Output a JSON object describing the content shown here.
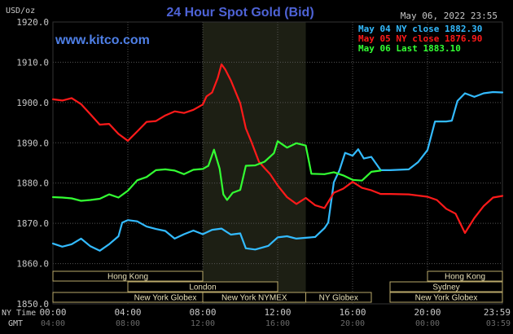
{
  "header": {
    "title": "24 Hour Spot Gold (Bid)",
    "date": "May 06, 2022 23:55",
    "brand": "www.kitco.com",
    "unit_label": "USD/oz"
  },
  "colors": {
    "background": "#000000",
    "title": "#4e63d6",
    "brand": "#4e7fe6",
    "axis_text": "#c8c8c8",
    "gridline": "#555555",
    "shade": "#1d1f14",
    "market_box_border": "#b9a86a",
    "market_box_text": "#e8e0b8",
    "series_may04": "#33bbff",
    "series_may05": "#ff1a1a",
    "series_may06": "#33ff33"
  },
  "markets": [
    {
      "name": "Hong Kong",
      "start": 0.0,
      "end": 8.0,
      "row": 0
    },
    {
      "name": "London",
      "start": 4.0,
      "end": 12.0,
      "row": 1
    },
    {
      "name": "New York Globex",
      "start": 0.0,
      "end": 12.0,
      "row": 2
    },
    {
      "name": "New York NYMEX",
      "start": 8.0,
      "end": 13.5,
      "row": 2
    },
    {
      "name": "NY Globex",
      "start": 13.5,
      "end": 17.0,
      "row": 2
    },
    {
      "name": "Hong Kong",
      "start": 20.0,
      "end": 24.0,
      "row": 0
    },
    {
      "name": "Sydney",
      "start": 18.0,
      "end": 24.0,
      "row": 1
    },
    {
      "name": "New York Globex",
      "start": 18.0,
      "end": 24.0,
      "row": 2
    }
  ],
  "shaded_region": {
    "start_hour": 8.0,
    "end_hour": 13.5
  },
  "footer": {
    "ny_time_label": "NY Time",
    "gmt_label": "GMT",
    "ny_ticks": [
      "00:00",
      "04:00",
      "08:00",
      "12:00",
      "16:00",
      "20:00",
      "23:59"
    ],
    "gmt_ticks": [
      "04:00",
      "08:00",
      "12:00",
      "16:00",
      "20:00",
      "00:00",
      "03:59"
    ]
  },
  "chart_data": {
    "type": "line",
    "title": "24 Hour Spot Gold (Bid)",
    "ylabel": "USD/oz",
    "xlabel": "NY Time",
    "ylim": [
      1850,
      1920
    ],
    "xlim_hours": [
      0,
      24
    ],
    "y_ticks": [
      "1920.0",
      "1910.0",
      "1900.0",
      "1890.0",
      "1880.0",
      "1870.0",
      "1860.0",
      "1850.0"
    ],
    "grid": true,
    "legend_position": "top-right",
    "series": [
      {
        "name": "May 04 NY close 1882.30",
        "color": "#33bbff",
        "points": [
          [
            0,
            1865
          ],
          [
            0.5,
            1864.2
          ],
          [
            1,
            1864.8
          ],
          [
            1.5,
            1866.2
          ],
          [
            2,
            1864.3
          ],
          [
            2.5,
            1863.2
          ],
          [
            3,
            1864.8
          ],
          [
            3.5,
            1866.8
          ],
          [
            3.7,
            1870.2
          ],
          [
            4,
            1870.8
          ],
          [
            4.5,
            1870.5
          ],
          [
            5,
            1869.2
          ],
          [
            5.5,
            1868.6
          ],
          [
            6,
            1868.1
          ],
          [
            6.5,
            1866.2
          ],
          [
            7,
            1867.3
          ],
          [
            7.5,
            1868.2
          ],
          [
            8,
            1867.3
          ],
          [
            8.5,
            1868.4
          ],
          [
            9,
            1868.7
          ],
          [
            9.5,
            1867.2
          ],
          [
            10,
            1867.5
          ],
          [
            10.3,
            1863.8
          ],
          [
            10.8,
            1863.5
          ],
          [
            11.5,
            1864.4
          ],
          [
            12,
            1866.5
          ],
          [
            12.5,
            1866.8
          ],
          [
            13,
            1866.2
          ],
          [
            13.5,
            1866.4
          ],
          [
            14,
            1866.6
          ],
          [
            14.5,
            1868.8
          ],
          [
            14.7,
            1870.2
          ],
          [
            15,
            1880.2
          ],
          [
            15.3,
            1883.2
          ],
          [
            15.6,
            1887.5
          ],
          [
            16,
            1886.8
          ],
          [
            16.3,
            1888.4
          ],
          [
            16.6,
            1886.1
          ],
          [
            17,
            1886.5
          ],
          [
            17.5,
            1883.2
          ],
          [
            18,
            1883.2
          ],
          [
            19,
            1883.4
          ],
          [
            19.5,
            1885.2
          ],
          [
            20,
            1888.2
          ],
          [
            20.4,
            1895.3
          ],
          [
            21,
            1895.3
          ],
          [
            21.3,
            1895.5
          ],
          [
            21.6,
            1900.4
          ],
          [
            22,
            1902.3
          ],
          [
            22.5,
            1901.4
          ],
          [
            23,
            1902.3
          ],
          [
            23.5,
            1902.6
          ],
          [
            24,
            1902.5
          ]
        ]
      },
      {
        "name": "May 05 NY close 1876.90",
        "color": "#ff1a1a",
        "points": [
          [
            0,
            1900.8
          ],
          [
            0.5,
            1900.5
          ],
          [
            1,
            1901.1
          ],
          [
            1.5,
            1899.6
          ],
          [
            2,
            1897.1
          ],
          [
            2.5,
            1894.5
          ],
          [
            3,
            1894.7
          ],
          [
            3.5,
            1892.2
          ],
          [
            4,
            1890.5
          ],
          [
            4.5,
            1892.8
          ],
          [
            5,
            1895.2
          ],
          [
            5.5,
            1895.4
          ],
          [
            6,
            1896.8
          ],
          [
            6.5,
            1897.8
          ],
          [
            7,
            1897.4
          ],
          [
            7.5,
            1898.2
          ],
          [
            8,
            1899.5
          ],
          [
            8.2,
            1901.5
          ],
          [
            8.5,
            1902.5
          ],
          [
            8.8,
            1906.1
          ],
          [
            9,
            1909.5
          ],
          [
            9.2,
            1908.2
          ],
          [
            9.5,
            1905.5
          ],
          [
            10,
            1899.8
          ],
          [
            10.3,
            1893.6
          ],
          [
            10.6,
            1890.2
          ],
          [
            11,
            1885.3
          ],
          [
            11.3,
            1883.7
          ],
          [
            11.6,
            1882.2
          ],
          [
            12,
            1879.4
          ],
          [
            12.5,
            1876.5
          ],
          [
            13,
            1874.8
          ],
          [
            13.5,
            1876.3
          ],
          [
            14,
            1874.5
          ],
          [
            14.5,
            1873.8
          ],
          [
            15,
            1877.6
          ],
          [
            15.5,
            1878.6
          ],
          [
            16,
            1880.3
          ],
          [
            16.5,
            1878.8
          ],
          [
            17,
            1878.2
          ],
          [
            17.5,
            1877.3
          ],
          [
            18,
            1877.3
          ],
          [
            19,
            1877.2
          ],
          [
            20,
            1876.6
          ],
          [
            20.5,
            1875.8
          ],
          [
            21,
            1873.6
          ],
          [
            21.5,
            1872.4
          ],
          [
            22,
            1867.6
          ],
          [
            22.5,
            1871.3
          ],
          [
            23,
            1874.3
          ],
          [
            23.5,
            1876.4
          ],
          [
            24,
            1876.8
          ]
        ]
      },
      {
        "name": "May 06 Last 1883.10",
        "color": "#33ff33",
        "points": [
          [
            0,
            1876.5
          ],
          [
            0.5,
            1876.4
          ],
          [
            1,
            1876.2
          ],
          [
            1.5,
            1875.6
          ],
          [
            2,
            1875.8
          ],
          [
            2.5,
            1876.1
          ],
          [
            3,
            1877.2
          ],
          [
            3.5,
            1876.4
          ],
          [
            4,
            1878.1
          ],
          [
            4.5,
            1880.7
          ],
          [
            5,
            1881.5
          ],
          [
            5.5,
            1883.2
          ],
          [
            6,
            1883.4
          ],
          [
            6.5,
            1883.1
          ],
          [
            7,
            1882.2
          ],
          [
            7.5,
            1883.3
          ],
          [
            8,
            1883.5
          ],
          [
            8.3,
            1884.3
          ],
          [
            8.6,
            1888.3
          ],
          [
            8.9,
            1883.6
          ],
          [
            9.1,
            1877.2
          ],
          [
            9.3,
            1875.8
          ],
          [
            9.6,
            1877.6
          ],
          [
            10,
            1878.3
          ],
          [
            10.3,
            1884.3
          ],
          [
            10.8,
            1884.4
          ],
          [
            11.3,
            1885.3
          ],
          [
            11.8,
            1887.4
          ],
          [
            12,
            1890.4
          ],
          [
            12.5,
            1888.8
          ],
          [
            13,
            1889.9
          ],
          [
            13.5,
            1889.3
          ],
          [
            13.8,
            1882.3
          ],
          [
            14.5,
            1882.2
          ],
          [
            15,
            1882.7
          ],
          [
            15.5,
            1881.9
          ],
          [
            16,
            1880.8
          ],
          [
            16.5,
            1880.6
          ],
          [
            17,
            1882.8
          ],
          [
            17.5,
            1883.1
          ]
        ]
      }
    ]
  }
}
